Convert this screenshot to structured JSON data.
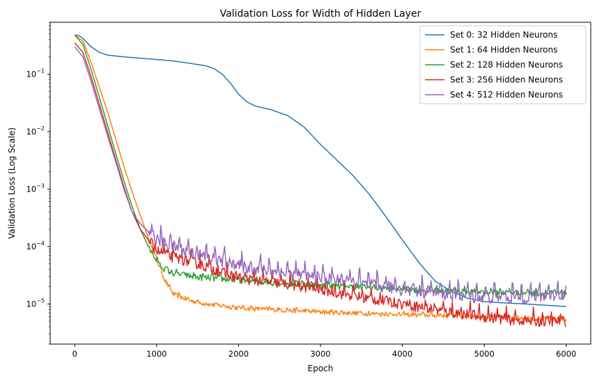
{
  "chart_data": {
    "type": "line",
    "title": "Validation Loss for Width of Hidden Layer",
    "xlabel": "Epoch",
    "ylabel": "Validation Loss (Log Scale)",
    "y_scale": "log",
    "xlim": [
      -300,
      6300
    ],
    "ylim": [
      2e-06,
      0.8
    ],
    "x_ticks": [
      0,
      1000,
      2000,
      3000,
      4000,
      5000,
      6000
    ],
    "x_tick_labels": [
      "0",
      "1000",
      "2000",
      "3000",
      "4000",
      "5000",
      "6000"
    ],
    "y_ticks": [
      1e-05,
      0.0001,
      0.001,
      0.01,
      0.1
    ],
    "y_tick_base": "10",
    "y_tick_exponents": [
      "−5",
      "−4",
      "−3",
      "−2",
      "−1"
    ],
    "grid": false,
    "legend_position": "top-right",
    "series": [
      {
        "name": "Set 0: 32 Hidden Neurons",
        "color": "#1f77b4",
        "noise": 0,
        "points": [
          [
            0,
            0.48
          ],
          [
            50,
            0.47
          ],
          [
            100,
            0.42
          ],
          [
            200,
            0.3
          ],
          [
            300,
            0.24
          ],
          [
            400,
            0.215
          ],
          [
            600,
            0.2
          ],
          [
            800,
            0.19
          ],
          [
            1000,
            0.18
          ],
          [
            1200,
            0.17
          ],
          [
            1400,
            0.155
          ],
          [
            1600,
            0.14
          ],
          [
            1700,
            0.125
          ],
          [
            1800,
            0.1
          ],
          [
            1900,
            0.07
          ],
          [
            2000,
            0.045
          ],
          [
            2100,
            0.033
          ],
          [
            2200,
            0.028
          ],
          [
            2400,
            0.024
          ],
          [
            2600,
            0.019
          ],
          [
            2800,
            0.012
          ],
          [
            3000,
            0.006
          ],
          [
            3200,
            0.0032
          ],
          [
            3400,
            0.0017
          ],
          [
            3600,
            0.0008
          ],
          [
            3800,
            0.00033
          ],
          [
            4000,
            0.00013
          ],
          [
            4200,
            5.3e-05
          ],
          [
            4400,
            2.5e-05
          ],
          [
            4600,
            1.65e-05
          ],
          [
            4800,
            1.25e-05
          ],
          [
            5000,
            1.1e-05
          ],
          [
            5200,
            1.05e-05
          ],
          [
            5500,
            1e-05
          ],
          [
            6000,
            9e-06
          ]
        ]
      },
      {
        "name": "Set 1: 64 Hidden Neurons",
        "color": "#ff7f0e",
        "noise": 0.05,
        "points": [
          [
            0,
            0.48
          ],
          [
            100,
            0.38
          ],
          [
            200,
            0.16
          ],
          [
            300,
            0.06
          ],
          [
            400,
            0.022
          ],
          [
            500,
            0.0075
          ],
          [
            600,
            0.0025
          ],
          [
            700,
            0.0009
          ],
          [
            800,
            0.00035
          ],
          [
            900,
            0.00014
          ],
          [
            1000,
            6e-05
          ],
          [
            1100,
            2.6e-05
          ],
          [
            1200,
            1.5e-05
          ],
          [
            1400,
            1.15e-05
          ],
          [
            1600,
            1e-05
          ],
          [
            2000,
            8.5e-06
          ],
          [
            3000,
            7.2e-06
          ],
          [
            4000,
            6.5e-06
          ],
          [
            5000,
            6e-06
          ],
          [
            6000,
            5.3e-06
          ]
        ]
      },
      {
        "name": "Set 2: 128 Hidden Neurons",
        "color": "#2ca02c",
        "noise": 0.07,
        "points": [
          [
            0,
            0.48
          ],
          [
            100,
            0.33
          ],
          [
            200,
            0.12
          ],
          [
            300,
            0.04
          ],
          [
            400,
            0.013
          ],
          [
            500,
            0.0042
          ],
          [
            600,
            0.0014
          ],
          [
            700,
            0.0005
          ],
          [
            800,
            0.0002
          ],
          [
            900,
            0.0001
          ],
          [
            1000,
            5.5e-05
          ],
          [
            1100,
            4e-05
          ],
          [
            1200,
            3.4e-05
          ],
          [
            1500,
            2.9e-05
          ],
          [
            2000,
            2.6e-05
          ],
          [
            2500,
            2.3e-05
          ],
          [
            3000,
            2.1e-05
          ],
          [
            4000,
            1.8e-05
          ],
          [
            5000,
            1.6e-05
          ],
          [
            6000,
            1.5e-05
          ]
        ]
      },
      {
        "name": "Set 3: 256 Hidden Neurons",
        "color": "#d62728",
        "noise": 0.12,
        "points": [
          [
            0,
            0.35
          ],
          [
            100,
            0.24
          ],
          [
            200,
            0.09
          ],
          [
            300,
            0.03
          ],
          [
            400,
            0.01
          ],
          [
            500,
            0.0033
          ],
          [
            600,
            0.0011
          ],
          [
            700,
            0.0004
          ],
          [
            800,
            0.0002
          ],
          [
            900,
            0.00013
          ],
          [
            1000,
            8.5e-05
          ],
          [
            1200,
            6.5e-05
          ],
          [
            1400,
            5.5e-05
          ],
          [
            1600,
            4.5e-05
          ],
          [
            1800,
            3.5e-05
          ],
          [
            2000,
            2.8e-05
          ],
          [
            2500,
            2.3e-05
          ],
          [
            3000,
            1.8e-05
          ],
          [
            3500,
            1.3e-05
          ],
          [
            4000,
            1e-05
          ],
          [
            4500,
            7.5e-06
          ],
          [
            5000,
            6e-06
          ],
          [
            5500,
            5e-06
          ],
          [
            6000,
            5e-06
          ]
        ]
      },
      {
        "name": "Set 4: 512 Hidden Neurons",
        "color": "#9467bd",
        "noise": 0.14,
        "points": [
          [
            0,
            0.3
          ],
          [
            100,
            0.2
          ],
          [
            200,
            0.075
          ],
          [
            300,
            0.025
          ],
          [
            400,
            0.0085
          ],
          [
            500,
            0.003
          ],
          [
            600,
            0.001
          ],
          [
            700,
            0.0004
          ],
          [
            800,
            0.00025
          ],
          [
            900,
            0.00018
          ],
          [
            1000,
            0.00013
          ],
          [
            1200,
            0.0001
          ],
          [
            1400,
            8e-05
          ],
          [
            1600,
            6.5e-05
          ],
          [
            1800,
            5.5e-05
          ],
          [
            2000,
            4.5e-05
          ],
          [
            2500,
            3.5e-05
          ],
          [
            3000,
            2.8e-05
          ],
          [
            3500,
            2.2e-05
          ],
          [
            4000,
            1.8e-05
          ],
          [
            4500,
            1.5e-05
          ],
          [
            5000,
            1.3e-05
          ],
          [
            5500,
            1.3e-05
          ],
          [
            6000,
            1.5e-05
          ]
        ]
      }
    ]
  }
}
